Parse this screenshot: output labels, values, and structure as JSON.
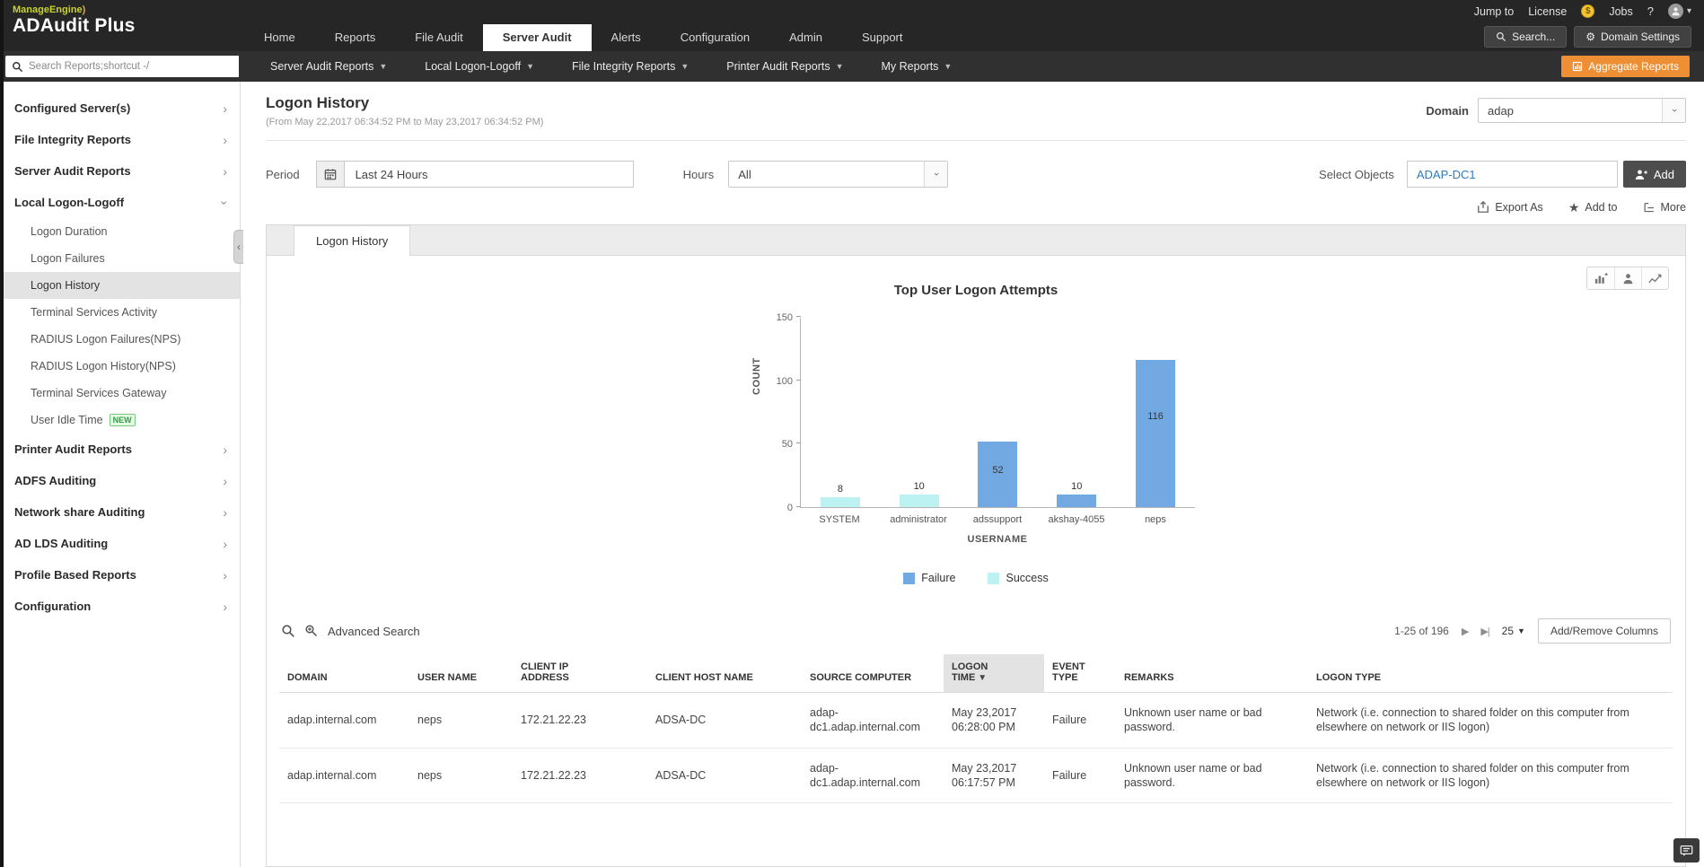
{
  "brand": {
    "company": "ManageEngine",
    "product": "ADAudit Plus"
  },
  "topbar": {
    "nav": [
      {
        "label": "Home",
        "active": false
      },
      {
        "label": "Reports",
        "active": false
      },
      {
        "label": "File Audit",
        "active": false
      },
      {
        "label": "Server Audit",
        "active": true
      },
      {
        "label": "Alerts",
        "active": false
      },
      {
        "label": "Configuration",
        "active": false
      },
      {
        "label": "Admin",
        "active": false
      },
      {
        "label": "Support",
        "active": false
      }
    ],
    "jump_to": "Jump to",
    "license": "License",
    "jobs": "Jobs",
    "help": "?",
    "search_button": "Search...",
    "domain_settings_button": "Domain Settings"
  },
  "menubar": {
    "search_placeholder": "Search Reports;shortcut -/",
    "menus": [
      "Server Audit Reports",
      "Local Logon-Logoff",
      "File Integrity Reports",
      "Printer Audit Reports",
      "My Reports"
    ],
    "aggregate_reports": "Aggregate Reports"
  },
  "sidebar": {
    "sections": [
      {
        "label": "Configured Server(s)",
        "expanded": false
      },
      {
        "label": "File Integrity Reports",
        "expanded": false
      },
      {
        "label": "Server Audit Reports",
        "expanded": false
      },
      {
        "label": "Local Logon-Logoff",
        "expanded": true,
        "children": [
          {
            "label": "Logon Duration"
          },
          {
            "label": "Logon Failures"
          },
          {
            "label": "Logon History",
            "selected": true
          },
          {
            "label": "Terminal Services Activity"
          },
          {
            "label": "RADIUS Logon Failures(NPS)"
          },
          {
            "label": "RADIUS Logon History(NPS)"
          },
          {
            "label": "Terminal Services Gateway"
          },
          {
            "label": "User Idle Time",
            "badge": "NEW"
          }
        ]
      },
      {
        "label": "Printer Audit Reports",
        "expanded": false
      },
      {
        "label": "ADFS Auditing",
        "expanded": false
      },
      {
        "label": "Network share Auditing",
        "expanded": false
      },
      {
        "label": "AD LDS Auditing",
        "expanded": false
      },
      {
        "label": "Profile Based Reports",
        "expanded": false
      },
      {
        "label": "Configuration",
        "expanded": false
      }
    ]
  },
  "report": {
    "title": "Logon History",
    "subtitle": "(From May 22,2017 06:34:52 PM to May 23,2017 06:34:52 PM)",
    "domain_label": "Domain",
    "domain_value": "adap",
    "period_label": "Period",
    "period_value": "Last 24 Hours",
    "hours_label": "Hours",
    "hours_value": "All",
    "select_objects_label": "Select Objects",
    "select_objects_value": "ADAP-DC1",
    "add_button": "Add",
    "export_as": "Export As",
    "add_to": "Add to",
    "more": "More",
    "tab": "Logon History"
  },
  "chart_data": {
    "type": "bar",
    "title": "Top User Logon Attempts",
    "xlabel": "USERNAME",
    "ylabel": "COUNT",
    "ylim": [
      0,
      150
    ],
    "yticks": [
      0,
      50,
      100,
      150
    ],
    "grid": false,
    "legend_position": "bottom",
    "categories": [
      "SYSTEM",
      "administrator",
      "adssupport",
      "akshay-4055",
      "neps"
    ],
    "values": [
      8,
      10,
      52,
      10,
      116
    ],
    "bar_series": [
      "Success",
      "Success",
      "Failure",
      "Failure",
      "Failure"
    ],
    "legend": [
      {
        "name": "Failure",
        "color": "#72a9e3"
      },
      {
        "name": "Success",
        "color": "#bdf2f2"
      }
    ]
  },
  "table": {
    "advanced_search": "Advanced Search",
    "pagination_range": "1-25 of 196",
    "page_size": "25",
    "add_remove_columns": "Add/Remove Columns",
    "sorted_column_index": 5,
    "columns": [
      "DOMAIN",
      "USER NAME",
      "CLIENT IP ADDRESS",
      "CLIENT HOST NAME",
      "SOURCE COMPUTER",
      "LOGON TIME",
      "EVENT TYPE",
      "REMARKS",
      "LOGON TYPE"
    ],
    "rows": [
      [
        "adap.internal.com",
        "neps",
        "172.21.22.23",
        "ADSA-DC",
        "adap-dc1.adap.internal.com",
        "May 23,2017 06:28:00 PM",
        "Failure",
        "Unknown user name or bad password.",
        "Network (i.e. connection to shared folder on this computer from elsewhere on network or IIS logon)"
      ],
      [
        "adap.internal.com",
        "neps",
        "172.21.22.23",
        "ADSA-DC",
        "adap-dc1.adap.internal.com",
        "May 23,2017 06:17:57 PM",
        "Failure",
        "Unknown user name or bad password.",
        "Network (i.e. connection to shared folder on this computer from elsewhere on network or IIS logon)"
      ]
    ]
  },
  "colors": {
    "header_bg": "#262626",
    "accent_orange": "#ee8f35",
    "link_blue": "#2e7bbf",
    "failure_bar": "#72a9e3",
    "success_bar": "#bdf2f2",
    "sidebar_selected": "#e3e3e3"
  }
}
